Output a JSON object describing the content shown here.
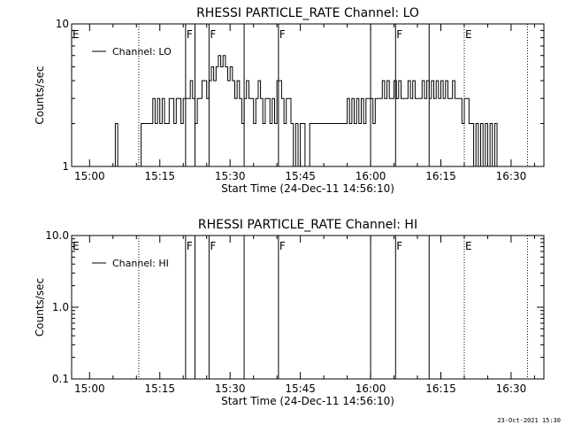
{
  "footer_timestamp": "23-Oct-2021 15:30",
  "chart_data": [
    {
      "type": "line",
      "title": "RHESSI PARTICLE_RATE Channel: LO",
      "xlabel": "Start Time (24-Dec-11 14:56:10)",
      "ylabel": "Counts/sec",
      "y_scale": "log",
      "ylim": [
        1,
        10
      ],
      "y_tick_labels": [
        "1",
        "10"
      ],
      "xlim": [
        "14:56:10",
        "16:37:00"
      ],
      "x_ticks": [
        "15:00",
        "15:15",
        "15:30",
        "15:45",
        "16:00",
        "16:15",
        "16:30"
      ],
      "grid": false,
      "legend": "top-left",
      "series": [
        {
          "name": "Channel: LO",
          "x": [
            "15:05:00",
            "15:05:30",
            "15:06:00",
            "15:06:30",
            "15:10:30",
            "15:11:00",
            "15:12:00",
            "15:13:00",
            "15:13:30",
            "15:14:00",
            "15:14:30",
            "15:15:00",
            "15:15:30",
            "15:16:00",
            "15:17:00",
            "15:17:30",
            "15:18:00",
            "15:18:30",
            "15:19:00",
            "15:19:30",
            "15:20:00",
            "15:21:00",
            "15:21:30",
            "15:22:00",
            "15:22:30",
            "15:23:00",
            "15:24:00",
            "15:25:00",
            "15:25:30",
            "15:26:00",
            "15:26:30",
            "15:27:00",
            "15:27:30",
            "15:28:00",
            "15:28:30",
            "15:29:00",
            "15:29:30",
            "15:30:00",
            "15:30:30",
            "15:31:00",
            "15:31:30",
            "15:32:00",
            "15:32:30",
            "15:33:00",
            "15:33:30",
            "15:34:00",
            "15:34:30",
            "15:35:00",
            "15:35:30",
            "15:36:00",
            "15:36:30",
            "15:37:00",
            "15:37:30",
            "15:38:00",
            "15:38:30",
            "15:39:00",
            "15:39:30",
            "15:40:00",
            "15:41:00",
            "15:41:30",
            "15:42:00",
            "15:42:30",
            "15:43:00",
            "15:43:30",
            "15:44:00",
            "15:44:30",
            "15:45:00",
            "15:45:30",
            "15:46:00",
            "15:47:00",
            "15:47:30",
            "15:48:00",
            "15:50:00",
            "15:51:00",
            "15:52:00",
            "15:53:00",
            "15:54:00",
            "15:55:00",
            "15:55:30",
            "15:56:00",
            "15:56:30",
            "15:57:00",
            "15:57:30",
            "15:58:00",
            "15:58:30",
            "15:59:00",
            "16:00:00",
            "16:00:30",
            "16:01:00",
            "16:01:30",
            "16:02:00",
            "16:02:30",
            "16:03:00",
            "16:03:30",
            "16:04:00",
            "16:04:30",
            "16:05:00",
            "16:05:30",
            "16:06:00",
            "16:06:30",
            "16:07:00",
            "16:07:30",
            "16:08:00",
            "16:08:30",
            "16:09:00",
            "16:09:30",
            "16:10:00",
            "16:10:30",
            "16:11:00",
            "16:11:30",
            "16:12:00",
            "16:12:30",
            "16:13:00",
            "16:13:30",
            "16:14:00",
            "16:14:30",
            "16:15:00",
            "16:15:30",
            "16:16:00",
            "16:16:30",
            "16:17:00",
            "16:17:30",
            "16:18:00",
            "16:18:30",
            "16:19:00",
            "16:19:30",
            "16:20:00",
            "16:21:00",
            "16:21:30",
            "16:22:00",
            "16:22:30",
            "16:23:00",
            "16:23:30",
            "16:24:00",
            "16:24:30",
            "16:25:00",
            "16:25:30",
            "16:26:00",
            "16:26:30",
            "16:27:00",
            "16:27:30"
          ],
          "values": [
            1,
            2,
            1,
            0,
            0,
            2,
            2,
            2,
            3,
            2,
            3,
            2,
            3,
            2,
            3,
            3,
            2,
            3,
            3,
            2,
            3,
            3,
            4,
            3,
            2,
            3,
            4,
            3,
            4,
            5,
            4,
            5,
            6,
            5,
            6,
            5,
            4,
            5,
            4,
            3,
            4,
            3,
            2,
            3,
            4,
            3,
            3,
            2,
            3,
            4,
            3,
            2,
            3,
            3,
            2,
            3,
            2,
            4,
            3,
            2,
            3,
            3,
            2,
            1,
            2,
            1,
            2,
            2,
            1,
            2,
            2,
            2,
            2,
            2,
            2,
            2,
            2,
            3,
            2,
            3,
            2,
            3,
            2,
            3,
            2,
            3,
            3,
            2,
            3,
            3,
            3,
            4,
            3,
            4,
            3,
            3,
            4,
            3,
            4,
            3,
            3,
            3,
            4,
            3,
            4,
            3,
            3,
            3,
            4,
            3,
            4,
            3,
            4,
            3,
            4,
            3,
            4,
            3,
            4,
            3,
            3,
            4,
            3,
            3,
            3,
            2,
            3,
            2,
            2,
            1,
            2,
            1,
            2,
            1,
            2,
            1,
            2,
            1,
            2,
            1,
            1
          ]
        }
      ],
      "events": {
        "flags": [
          {
            "label": "E",
            "time": "14:56:10",
            "style": "none"
          },
          {
            "label": "F",
            "time": "15:20:30",
            "style": "solid"
          },
          {
            "label": "",
            "time": "15:22:30",
            "style": "solid"
          },
          {
            "label": "F",
            "time": "15:25:30",
            "style": "solid"
          },
          {
            "label": "",
            "time": "15:33:00",
            "style": "solid"
          },
          {
            "label": "F",
            "time": "15:40:20",
            "style": "solid"
          },
          {
            "label": "",
            "time": "16:00:00",
            "style": "solid"
          },
          {
            "label": "F",
            "time": "16:05:20",
            "style": "solid"
          },
          {
            "label": "",
            "time": "16:12:30",
            "style": "solid"
          },
          {
            "label": "E",
            "time": "16:20:00",
            "style": "dotted"
          }
        ],
        "dotted_lines": [
          "15:10:30",
          "16:33:30"
        ]
      }
    },
    {
      "type": "line",
      "title": "RHESSI PARTICLE_RATE Channel: HI",
      "xlabel": "Start Time (24-Dec-11 14:56:10)",
      "ylabel": "Counts/sec",
      "y_scale": "log",
      "ylim": [
        0.1,
        10
      ],
      "y_tick_labels": [
        "0.1",
        "1.0",
        "10.0"
      ],
      "xlim": [
        "14:56:10",
        "16:37:00"
      ],
      "x_ticks": [
        "15:00",
        "15:15",
        "15:30",
        "15:45",
        "16:00",
        "16:15",
        "16:30"
      ],
      "grid": false,
      "legend": "top-left",
      "series": [
        {
          "name": "Channel: HI",
          "x": [],
          "values": []
        }
      ],
      "events": {
        "flags": [
          {
            "label": "E",
            "time": "14:56:10",
            "style": "none"
          },
          {
            "label": "F",
            "time": "15:20:30",
            "style": "solid"
          },
          {
            "label": "",
            "time": "15:22:30",
            "style": "solid"
          },
          {
            "label": "F",
            "time": "15:25:30",
            "style": "solid"
          },
          {
            "label": "",
            "time": "15:33:00",
            "style": "solid"
          },
          {
            "label": "F",
            "time": "15:40:20",
            "style": "solid"
          },
          {
            "label": "",
            "time": "16:00:00",
            "style": "solid"
          },
          {
            "label": "F",
            "time": "16:05:20",
            "style": "solid"
          },
          {
            "label": "",
            "time": "16:12:30",
            "style": "solid"
          },
          {
            "label": "E",
            "time": "16:20:00",
            "style": "dotted"
          }
        ],
        "dotted_lines": [
          "15:10:30",
          "16:33:30"
        ]
      }
    }
  ]
}
